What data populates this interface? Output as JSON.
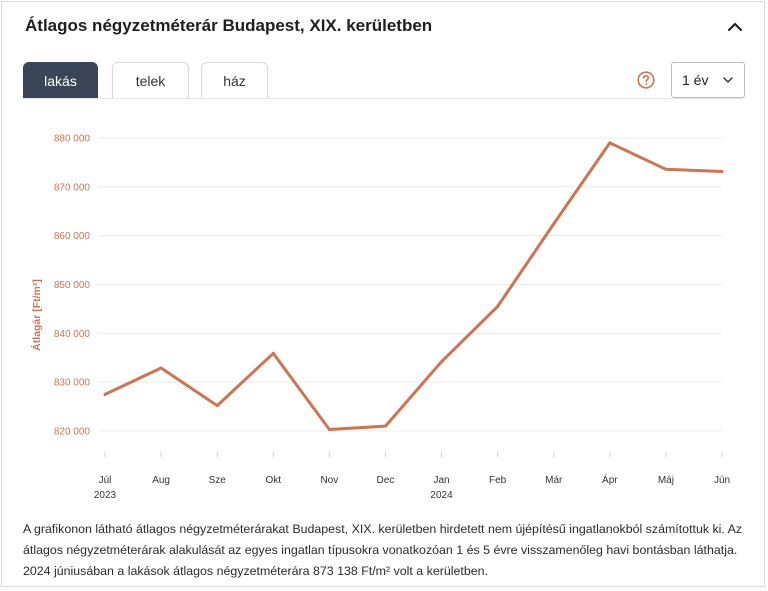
{
  "header": {
    "title": "Átlagos négyzetméterár Budapest, XIX. kerületben"
  },
  "tabs": [
    {
      "label": "lakás",
      "active": true
    },
    {
      "label": "telek",
      "active": false
    },
    {
      "label": "ház",
      "active": false
    }
  ],
  "period_select": {
    "value": "1 év"
  },
  "icons": {
    "help": "help-circle-icon",
    "collapse": "chevron-up-icon",
    "dropdown": "chevron-down-icon"
  },
  "colors": {
    "accent": "#cc7456",
    "tab_active": "#3a4658"
  },
  "chart_data": {
    "type": "line",
    "title": "",
    "xlabel": "",
    "ylabel": "Átlagár [Ft/m²]",
    "categories": [
      "Júl",
      "Aug",
      "Sze",
      "Okt",
      "Nov",
      "Dec",
      "Jan",
      "Feb",
      "Már",
      "Ápr",
      "Máj",
      "Jún"
    ],
    "year_labels": {
      "0": "2023",
      "6": "2024"
    },
    "series": [
      {
        "values": [
          827500,
          832900,
          825200,
          835900,
          820300,
          821000,
          834200,
          845500,
          862400,
          879000,
          873600,
          873138
        ]
      }
    ],
    "yticks": [
      820000,
      830000,
      840000,
      850000,
      860000,
      870000,
      880000
    ],
    "ytick_labels": [
      "820 000",
      "830 000",
      "840 000",
      "850 000",
      "860 000",
      "870 000",
      "880 000"
    ],
    "ylim": [
      815000,
      885000
    ],
    "grid": true,
    "legend": "none",
    "line_color": "#cc7456"
  },
  "description": "A grafikonon látható átlagos négyzetméterárakat Budapest, XIX. kerületben hirdetett nem újépítésű ingatlanokból számítottuk ki. Az átlagos négyzetméterárak alakulását az egyes ingatlan típusokra vonatkozóan 1 és 5 évre visszamenőleg havi bontásban láthatja. 2024 júniusában a lakások átlagos négyzetméterára 873 138 Ft/m² volt a kerületben."
}
